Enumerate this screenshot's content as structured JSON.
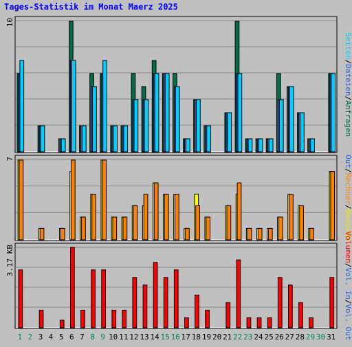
{
  "chart_data": [
    {
      "type": "bar",
      "title": "Tages-Statistik im Monat Maerz 2025",
      "x": [
        1,
        2,
        3,
        4,
        5,
        6,
        7,
        8,
        9,
        10,
        11,
        12,
        13,
        14,
        15,
        16,
        17,
        18,
        19,
        20,
        21,
        22,
        23,
        24,
        25,
        26,
        27,
        28,
        29,
        30,
        31
      ],
      "weekend_days": [
        1,
        2,
        8,
        9,
        15,
        16,
        22,
        23,
        29,
        30
      ],
      "ymax_label": "10",
      "ylim": [
        0,
        10
      ],
      "grid": true,
      "series": [
        {
          "name": "Anfragen",
          "color": "#006E46",
          "values": [
            6,
            0,
            2,
            0,
            1,
            10,
            2,
            6,
            6,
            2,
            2,
            6,
            5,
            7,
            6,
            6,
            1,
            4,
            2,
            0,
            3,
            10,
            1,
            1,
            1,
            6,
            5,
            3,
            1,
            0,
            6
          ]
        },
        {
          "name": "Dateien",
          "color": "#2B62E0",
          "values": [
            6,
            0,
            2,
            0,
            1,
            7,
            2,
            5,
            6,
            2,
            2,
            4,
            4,
            6,
            6,
            5,
            1,
            4,
            2,
            0,
            3,
            6,
            1,
            1,
            1,
            4,
            5,
            3,
            1,
            0,
            6
          ]
        },
        {
          "name": "Seiten",
          "color": "#00D0FF",
          "values": [
            7,
            0,
            2,
            0,
            1,
            7,
            2,
            5,
            7,
            2,
            2,
            4,
            4,
            6,
            6,
            5,
            1,
            4,
            2,
            0,
            3,
            6,
            1,
            1,
            1,
            4,
            5,
            3,
            1,
            0,
            6
          ]
        }
      ]
    },
    {
      "type": "bar",
      "ymax_label": "7",
      "ylim": [
        0,
        7
      ],
      "grid": true,
      "series": [
        {
          "name": "Besuche",
          "color": "#FFFF00",
          "values": [
            7,
            0,
            1,
            0,
            1,
            6,
            2,
            4,
            7,
            2,
            2,
            3,
            3,
            5,
            4,
            4,
            1,
            4,
            2,
            0,
            3,
            4,
            1,
            1,
            1,
            2,
            4,
            3,
            1,
            0,
            6
          ]
        },
        {
          "name": "Rechner",
          "color": "#FF8000",
          "values": [
            7,
            0,
            1,
            0,
            1,
            7,
            2,
            4,
            7,
            2,
            2,
            3,
            4,
            5,
            4,
            4,
            1,
            3,
            2,
            0,
            3,
            5,
            1,
            1,
            1,
            2,
            4,
            3,
            1,
            0,
            6
          ]
        }
      ]
    },
    {
      "type": "bar",
      "ymax_label": "3.17 KB",
      "ylim": [
        0,
        3.17
      ],
      "grid": true,
      "series": [
        {
          "name": "Volumen",
          "color": "#FF0000",
          "values": [
            2.3,
            0,
            0.7,
            0,
            0.3,
            3.2,
            0.7,
            2.3,
            2.3,
            0.7,
            0.7,
            2.0,
            1.7,
            2.6,
            2.0,
            2.3,
            0.4,
            1.3,
            0.7,
            0,
            1.0,
            2.7,
            0.4,
            0.4,
            0.4,
            2.0,
            1.7,
            1.0,
            0.4,
            0,
            2.0
          ]
        },
        {
          "name": "Vol. In",
          "color": "#3060E0",
          "values": []
        },
        {
          "name": "Vol. Out",
          "color": "#00D0FF",
          "values": []
        }
      ]
    }
  ],
  "right_legend": [
    {
      "items": [
        {
          "text": "Anfragen",
          "color": "#006E46"
        },
        {
          "text": "Dateien",
          "color": "#2B62E0"
        },
        {
          "text": "Seiten",
          "color": "#00D0FF"
        }
      ]
    },
    {
      "items": [
        {
          "text": "Besuche",
          "color": "#E8E800"
        },
        {
          "text": "Rechner",
          "color": "#FF8000"
        },
        {
          "text": "Out",
          "color": "#2B62E0"
        }
      ]
    },
    {
      "items": [
        {
          "text": "Vol. Out",
          "color": "#2B62E0"
        },
        {
          "text": "Vol. In",
          "color": "#2B62E0"
        },
        {
          "text": "Volumen",
          "color": "#FF0000"
        }
      ]
    }
  ],
  "separator": "/",
  "colors": {
    "background": "#C0C0C0",
    "title": "#0000FF",
    "weekday_label": "#000000",
    "weekend_label": "#00805C",
    "grid": "#888888"
  }
}
